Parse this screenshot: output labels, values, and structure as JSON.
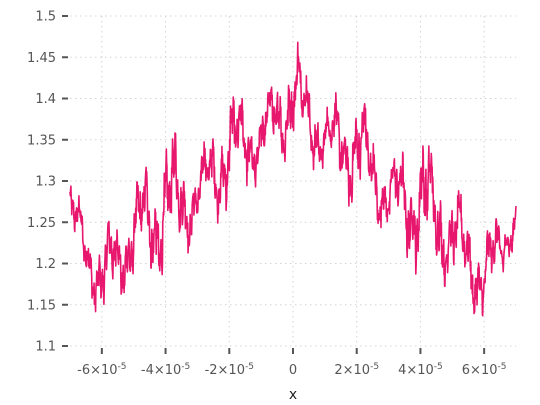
{
  "chart_data": {
    "type": "line",
    "title": "",
    "xlabel": "x",
    "ylabel": "",
    "xlim": [
      -7e-05,
      7e-05
    ],
    "ylim": [
      1.1,
      1.5
    ],
    "grid": true,
    "legend": "none",
    "line_color": "#e8176e",
    "x_ticks": [
      {
        "value": -6e-05,
        "mantissa": "-6×10",
        "exp": "-5"
      },
      {
        "value": -4e-05,
        "mantissa": "-4×10",
        "exp": "-5"
      },
      {
        "value": -2e-05,
        "mantissa": "-2×10",
        "exp": "-5"
      },
      {
        "value": 0,
        "mantissa": "0",
        "exp": ""
      },
      {
        "value": 2e-05,
        "mantissa": "2×10",
        "exp": "-5"
      },
      {
        "value": 4e-05,
        "mantissa": "4×10",
        "exp": "-5"
      },
      {
        "value": 6e-05,
        "mantissa": "6×10",
        "exp": "-5"
      }
    ],
    "y_ticks": [
      {
        "value": 1.1,
        "label": "1.1"
      },
      {
        "value": 1.15,
        "label": "1.15"
      },
      {
        "value": 1.2,
        "label": "1.2"
      },
      {
        "value": 1.25,
        "label": "1.25"
      },
      {
        "value": 1.3,
        "label": "1.3"
      },
      {
        "value": 1.35,
        "label": "1.35"
      },
      {
        "value": 1.4,
        "label": "1.4"
      },
      {
        "value": 1.45,
        "label": "1.45"
      },
      {
        "value": 1.5,
        "label": "1.5"
      }
    ],
    "series": [
      {
        "envelope": {
          "x": [
            -7e-05,
            -6.5e-05,
            -6e-05,
            -5e-05,
            -4e-05,
            -3e-05,
            -2e-05,
            -1e-05,
            0,
            1e-05,
            2e-05,
            3e-05,
            4e-05,
            5e-05,
            6e-05,
            6.5e-05,
            7e-05
          ],
          "low": [
            1.22,
            1.17,
            1.12,
            1.17,
            1.17,
            1.23,
            1.26,
            1.3,
            1.33,
            1.3,
            1.26,
            1.23,
            1.18,
            1.17,
            1.12,
            1.17,
            1.22
          ],
          "high": [
            1.31,
            1.26,
            1.24,
            1.3,
            1.37,
            1.33,
            1.42,
            1.4,
            1.48,
            1.4,
            1.42,
            1.33,
            1.37,
            1.3,
            1.24,
            1.27,
            1.3
          ]
        }
      }
    ]
  }
}
